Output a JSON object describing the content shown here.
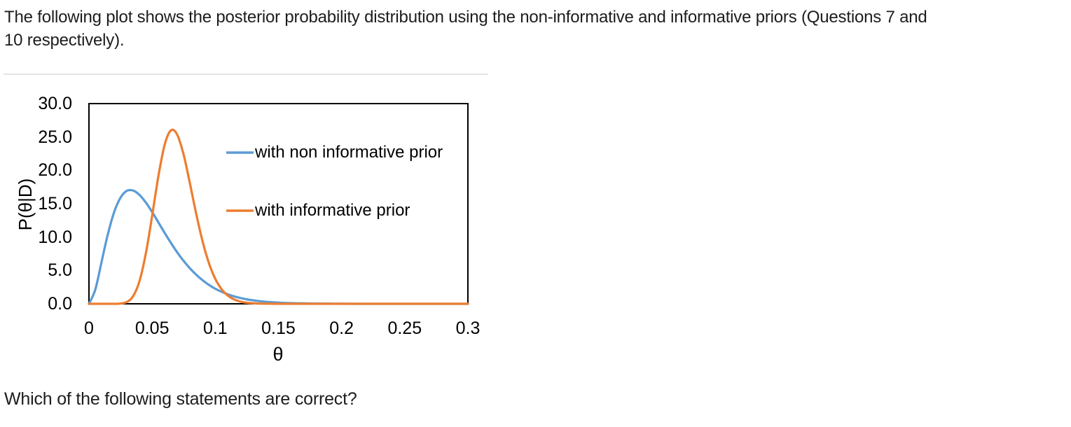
{
  "intro": {
    "line1": "The following plot shows the posterior probability distribution using the non-informative and informative priors (Questions 7 and",
    "line2": "10 respectively)."
  },
  "question": "Which of the following statements are correct?",
  "chart_data": {
    "type": "line",
    "title": "",
    "xlabel": "θ",
    "ylabel": "P(θ|D)",
    "xlim": [
      0,
      0.3
    ],
    "ylim": [
      0,
      30
    ],
    "grid": false,
    "legend_position": "inside-top-right",
    "x_tick_labels": [
      "0",
      "0.05",
      "0.1",
      "0.15",
      "0.2",
      "0.25",
      "0.3"
    ],
    "x_tick_values": [
      0,
      0.05,
      0.1,
      0.15,
      0.2,
      0.25,
      0.3
    ],
    "y_tick_labels": [
      "0.0",
      "5.0",
      "10.0",
      "15.0",
      "20.0",
      "25.0",
      "30.0"
    ],
    "y_tick_values": [
      0,
      5,
      10,
      15,
      20,
      25,
      30
    ],
    "axis_color": "#000000",
    "series": [
      {
        "name": "with non informative prior",
        "color": "#5B9BD5",
        "peak": {
          "theta": 0.033,
          "value": 17.0
        },
        "x": [
          0,
          0.005,
          0.01,
          0.015,
          0.02,
          0.025,
          0.03,
          0.035,
          0.04,
          0.045,
          0.05,
          0.055,
          0.06,
          0.065,
          0.07,
          0.075,
          0.08,
          0.085,
          0.09,
          0.095,
          0.1,
          0.105,
          0.11,
          0.115,
          0.12,
          0.125,
          0.13,
          0.135,
          0.14,
          0.145,
          0.15,
          0.16,
          0.17,
          0.18,
          0.19,
          0.2,
          0.22,
          0.24,
          0.26,
          0.28,
          0.3
        ],
        "y": [
          0,
          2.11,
          6.27,
          10.47,
          13.78,
          15.91,
          16.93,
          16.97,
          16.32,
          15.19,
          13.76,
          12.19,
          10.6,
          9.1,
          7.68,
          6.41,
          5.3,
          4.34,
          3.52,
          2.83,
          2.26,
          1.8,
          1.42,
          1.11,
          0.87,
          0.67,
          0.52,
          0.4,
          0.3,
          0.23,
          0.18,
          0.1,
          0.06,
          0.03,
          0.02,
          0.01,
          0,
          0,
          0,
          0,
          0
        ]
      },
      {
        "name": "with informative prior",
        "color": "#ED7D31",
        "peak": {
          "theta": 0.066,
          "value": 26.0
        },
        "x": [
          0,
          0.005,
          0.01,
          0.015,
          0.02,
          0.025,
          0.03,
          0.035,
          0.04,
          0.045,
          0.05,
          0.055,
          0.06,
          0.065,
          0.07,
          0.075,
          0.08,
          0.085,
          0.09,
          0.095,
          0.1,
          0.105,
          0.11,
          0.115,
          0.12,
          0.125,
          0.13,
          0.135,
          0.14,
          0.145,
          0.15,
          0.16,
          0.17,
          0.18,
          0.19,
          0.2,
          0.22,
          0.24,
          0.26,
          0.28,
          0.3
        ],
        "y": [
          0,
          0,
          0,
          0,
          0.002,
          0.04,
          0.27,
          1.14,
          3.39,
          7.5,
          13.18,
          19.18,
          23.88,
          26.0,
          25.3,
          22.3,
          17.96,
          13.4,
          9.33,
          6.08,
          3.75,
          2.19,
          1.22,
          0.65,
          0.33,
          0.16,
          0.08,
          0.035,
          0.015,
          0.007,
          0.003,
          0,
          0,
          0,
          0,
          0,
          0,
          0,
          0,
          0,
          0
        ]
      }
    ]
  },
  "colors": {
    "body_text": "#1d1d1f",
    "divider": "#e4e4e4",
    "series_blue": "#5B9BD5",
    "series_orange": "#ED7D31"
  }
}
